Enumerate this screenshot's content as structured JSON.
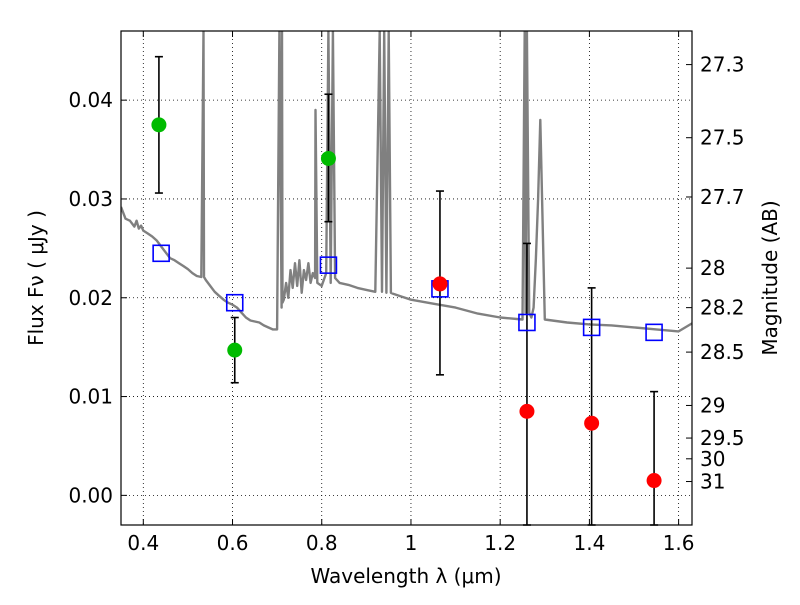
{
  "chart_data": {
    "type": "scatter",
    "xlabel": "Wavelength  λ (μm)",
    "ylabel": "Flux  Fν  ( μJy )",
    "y2label": "Magnitude (AB)",
    "xlim": [
      0.35,
      1.63
    ],
    "ylim": [
      -0.003,
      0.047
    ],
    "grid": true,
    "x_ticks": [
      0.4,
      0.6,
      0.8,
      1.0,
      1.2,
      1.4,
      1.6
    ],
    "x_tick_labels": [
      "0.4",
      "0.6",
      "0.8",
      "1",
      "1.2",
      "1.4",
      "1.6"
    ],
    "y_ticks": [
      0.0,
      0.01,
      0.02,
      0.03,
      0.04
    ],
    "y_tick_labels": [
      "0.00",
      "0.01",
      "0.02",
      "0.03",
      "0.04"
    ],
    "y2_ticks": [
      {
        "label": "27.3",
        "flux": 0.0436
      },
      {
        "label": "27.5",
        "flux": 0.0362
      },
      {
        "label": "27.7",
        "flux": 0.0302
      },
      {
        "label": "28",
        "flux": 0.023
      },
      {
        "label": "28.2",
        "flux": 0.019
      },
      {
        "label": "28.5",
        "flux": 0.0145
      },
      {
        "label": "29",
        "flux": 0.0091
      },
      {
        "label": "29.5",
        "flux": 0.0058
      },
      {
        "label": "30",
        "flux": 0.0037
      },
      {
        "label": "31",
        "flux": 0.0014
      }
    ],
    "colors": {
      "model": "#808080",
      "green": "#00bb00",
      "red": "#ff0000",
      "square": "#0000ff",
      "errorbar": "#000000"
    },
    "series": [
      {
        "marker": "line",
        "x": [
          0.35,
          0.36,
          0.37,
          0.38,
          0.385,
          0.39,
          0.395,
          0.4,
          0.41,
          0.42,
          0.43,
          0.44,
          0.45,
          0.46,
          0.47,
          0.48,
          0.49,
          0.5,
          0.51,
          0.52,
          0.53,
          0.535,
          0.536,
          0.54,
          0.55,
          0.56,
          0.57,
          0.58,
          0.59,
          0.6,
          0.61,
          0.62,
          0.63,
          0.64,
          0.65,
          0.66,
          0.67,
          0.68,
          0.69,
          0.7,
          0.705,
          0.71,
          0.711,
          0.712,
          0.715,
          0.72,
          0.725,
          0.73,
          0.735,
          0.74,
          0.745,
          0.75,
          0.755,
          0.76,
          0.765,
          0.77,
          0.775,
          0.78,
          0.785,
          0.786,
          0.79,
          0.8,
          0.81,
          0.815,
          0.82,
          0.825,
          0.83,
          0.84,
          0.86,
          0.88,
          0.9,
          0.92,
          0.93,
          0.935,
          0.94,
          0.945,
          0.95,
          0.955,
          0.96,
          0.98,
          1.0,
          1.05,
          1.1,
          1.15,
          1.2,
          1.25,
          1.255,
          1.257,
          1.26,
          1.265,
          1.27,
          1.275,
          1.28,
          1.285,
          1.29,
          1.3,
          1.35,
          1.4,
          1.45,
          1.5,
          1.55,
          1.6,
          1.63
        ],
        "y": [
          0.0292,
          0.028,
          0.0278,
          0.0272,
          0.0278,
          0.027,
          0.0273,
          0.0268,
          0.0265,
          0.0262,
          0.0258,
          0.0252,
          0.0246,
          0.024,
          0.0238,
          0.0235,
          0.0232,
          0.0229,
          0.0225,
          0.0222,
          0.0221,
          0.047,
          0.0221,
          0.0218,
          0.0212,
          0.0206,
          0.0202,
          0.0198,
          0.0195,
          0.0193,
          0.019,
          0.0185,
          0.018,
          0.0177,
          0.0176,
          0.0175,
          0.0172,
          0.017,
          0.0168,
          0.0168,
          0.047,
          0.019,
          0.047,
          0.0195,
          0.0198,
          0.0215,
          0.02,
          0.0228,
          0.021,
          0.0235,
          0.0212,
          0.0238,
          0.0205,
          0.0228,
          0.0218,
          0.0235,
          0.0215,
          0.0225,
          0.022,
          0.039,
          0.0215,
          0.0212,
          0.0225,
          0.047,
          0.0215,
          0.047,
          0.022,
          0.0215,
          0.0213,
          0.021,
          0.0208,
          0.0206,
          0.047,
          0.0206,
          0.047,
          0.0205,
          0.047,
          0.0205,
          0.0204,
          0.0201,
          0.0198,
          0.0194,
          0.019,
          0.0184,
          0.018,
          0.0178,
          0.047,
          0.0185,
          0.047,
          0.0185,
          0.018,
          0.019,
          0.024,
          0.03,
          0.038,
          0.0178,
          0.0175,
          0.0173,
          0.0172,
          0.017,
          0.0168,
          0.0166,
          0.0174
        ]
      },
      {
        "marker": "square",
        "x": [
          0.44,
          0.605,
          0.815,
          1.065,
          1.26,
          1.405,
          1.545
        ],
        "y": [
          0.0245,
          0.0195,
          0.0233,
          0.0209,
          0.0175,
          0.017,
          0.0165
        ]
      },
      {
        "marker": "circle-green",
        "x": [
          0.435,
          0.605,
          0.815
        ],
        "y": [
          0.0375,
          0.0147,
          0.0341
        ],
        "yerr_low": [
          0.0306,
          0.0114,
          0.0277
        ],
        "yerr_high": [
          0.0444,
          0.018,
          0.0406
        ]
      },
      {
        "marker": "circle-red",
        "x": [
          1.065,
          1.26,
          1.405,
          1.545
        ],
        "y": [
          0.0214,
          0.0085,
          0.0073,
          0.0015
        ],
        "yerr_low": [
          0.0122,
          -0.003,
          -0.003,
          -0.003
        ],
        "yerr_high": [
          0.0308,
          0.0255,
          0.021,
          0.0105
        ]
      }
    ]
  }
}
